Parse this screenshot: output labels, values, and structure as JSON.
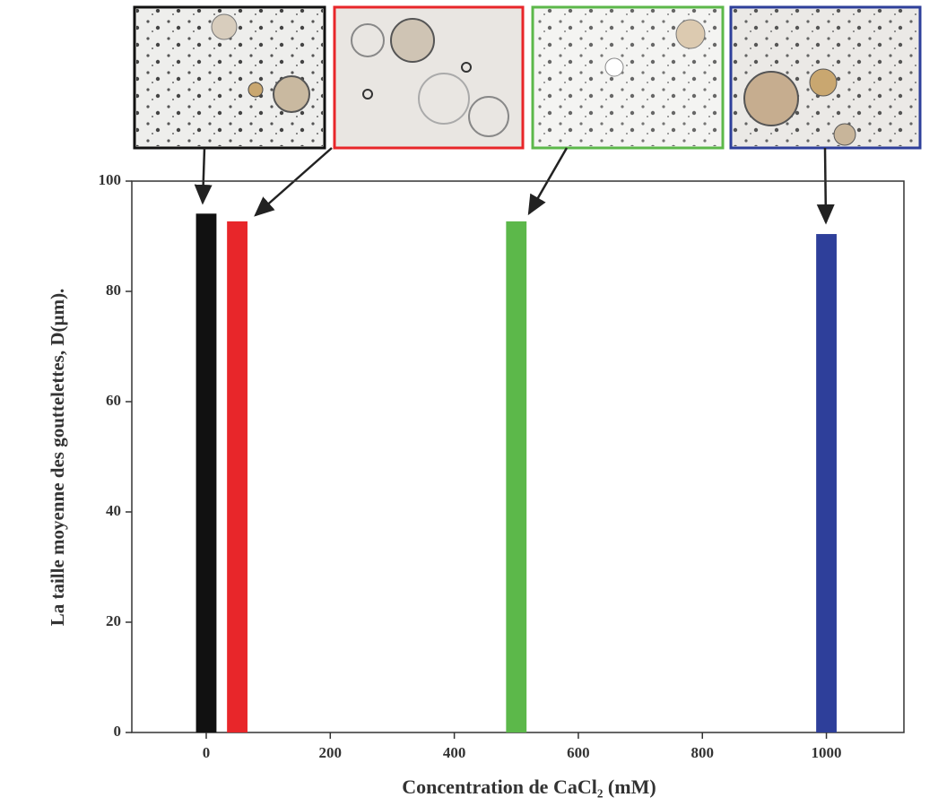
{
  "chart_data": {
    "type": "bar",
    "x_label": "Concentration de CaCl₂ (mM)",
    "y_label": "La taille moyenne des gouttelettes, D(µm).",
    "x": [
      0,
      50,
      500,
      1000
    ],
    "values": [
      94.1,
      92.7,
      92.7,
      90.4
    ],
    "colors": [
      "#111111",
      "#e8262a",
      "#5cb84a",
      "#2e3f9a"
    ],
    "xlim": [
      -120,
      1125
    ],
    "xticks": [
      0,
      200,
      400,
      600,
      800,
      1000
    ],
    "ylim": [
      0,
      100
    ],
    "yticks": [
      0,
      20,
      40,
      60,
      80,
      100
    ]
  }
}
